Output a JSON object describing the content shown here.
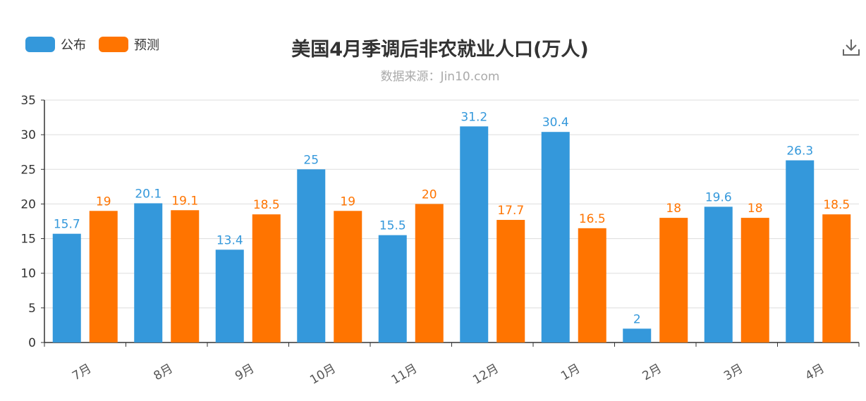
{
  "legend": {
    "published": {
      "label": "公布",
      "color": "#3498db"
    },
    "forecast": {
      "label": "预测",
      "color": "#ff7400"
    }
  },
  "icons": {
    "download": "download-icon"
  },
  "chart_data": {
    "type": "bar",
    "title": "美国4月季调后非农就业人口(万人)",
    "subtitle": "数据来源：Jin10.com",
    "categories": [
      "7月",
      "8月",
      "9月",
      "10月",
      "11月",
      "12月",
      "1月",
      "2月",
      "3月",
      "4月"
    ],
    "series": [
      {
        "name": "公布",
        "color": "#3498db",
        "values": [
          15.7,
          20.1,
          13.4,
          25,
          15.5,
          31.2,
          30.4,
          2,
          19.6,
          26.3
        ]
      },
      {
        "name": "预测",
        "color": "#ff7400",
        "values": [
          19,
          19.1,
          18.5,
          19,
          20,
          17.7,
          16.5,
          18,
          18,
          18.5
        ]
      }
    ],
    "ylim": [
      0,
      35
    ],
    "yticks": [
      0,
      5,
      10,
      15,
      20,
      25,
      30,
      35
    ],
    "xlabel": "",
    "ylabel": "",
    "grid": true,
    "legend_position": "top-left",
    "data_labels": true
  }
}
